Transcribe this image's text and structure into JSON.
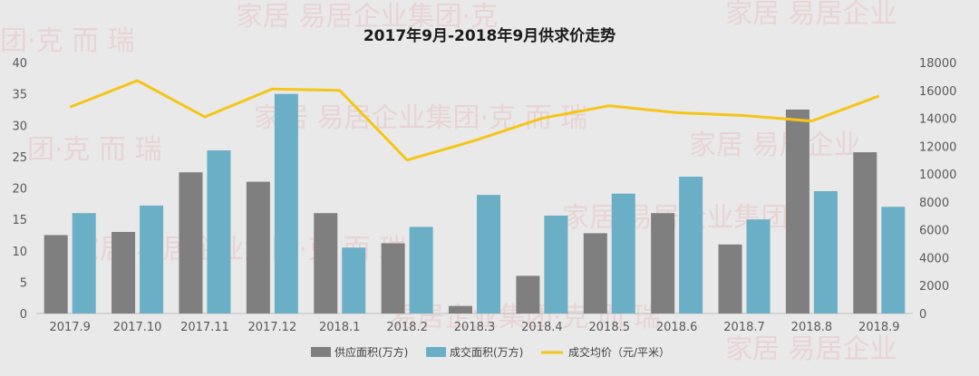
{
  "chart_data": {
    "type": "bar+line",
    "title": "2017年9月-2018年9月供求价走势",
    "categories": [
      "2017.9",
      "2017.10",
      "2017.11",
      "2017.12",
      "2018.1",
      "2018.2",
      "2018.3",
      "2018.4",
      "2018.5",
      "2018.6",
      "2018.7",
      "2018.8",
      "2018.9"
    ],
    "series": [
      {
        "name": "供应面积(万方)",
        "type": "bar",
        "axis": "left",
        "color": "#7f7f7f",
        "values": [
          12.5,
          13.0,
          22.5,
          21.0,
          16.0,
          11.2,
          1.2,
          6.0,
          12.8,
          16.0,
          11.0,
          32.5,
          25.7
        ]
      },
      {
        "name": "成交面积(万方)",
        "type": "bar",
        "axis": "left",
        "color": "#6aafc5",
        "values": [
          16.0,
          17.2,
          26.0,
          35.0,
          10.5,
          13.8,
          18.9,
          15.6,
          19.1,
          21.8,
          15.0,
          19.5,
          17.0
        ]
      },
      {
        "name": "成交均价（元/平米）",
        "type": "line",
        "axis": "right",
        "color": "#f5c518",
        "values": [
          14800,
          16700,
          14100,
          16100,
          16000,
          11000,
          12400,
          14000,
          14900,
          14400,
          14200,
          13800,
          15600
        ]
      }
    ],
    "y_left": {
      "min": 0,
      "max": 40,
      "ticks": [
        0,
        5,
        10,
        15,
        20,
        25,
        30,
        35,
        40
      ]
    },
    "y_right": {
      "min": 0,
      "max": 18000,
      "ticks": [
        0,
        2000,
        4000,
        6000,
        8000,
        10000,
        12000,
        14000,
        16000,
        18000
      ]
    },
    "grid": false,
    "legend_position": "bottom"
  }
}
